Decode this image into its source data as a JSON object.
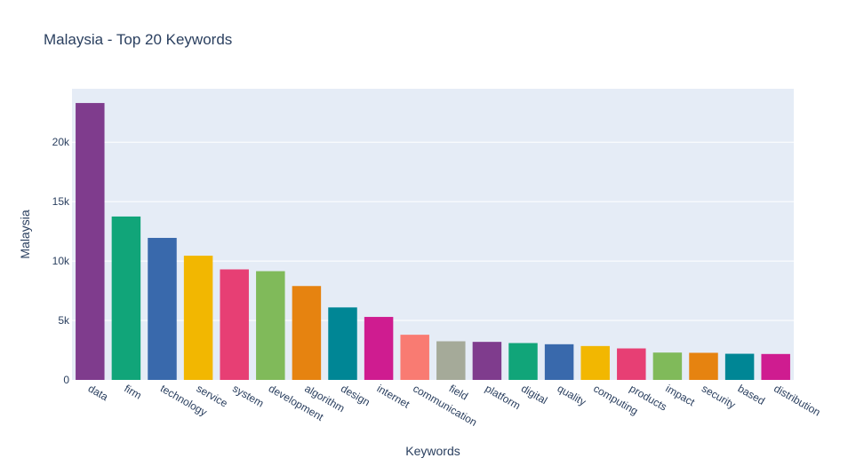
{
  "chart_data": {
    "type": "bar",
    "title": "Malaysia - Top 20 Keywords",
    "xlabel": "Keywords",
    "ylabel": "Malaysia",
    "categories": [
      "data",
      "firm",
      "technology",
      "service",
      "system",
      "development",
      "algorithm",
      "design",
      "internet",
      "communication",
      "field",
      "platform",
      "digital",
      "quality",
      "computing",
      "products",
      "impact",
      "security",
      "based",
      "distribution"
    ],
    "values": [
      23300,
      13750,
      11950,
      10450,
      9300,
      9150,
      7900,
      6100,
      5300,
      3800,
      3250,
      3200,
      3100,
      3000,
      2850,
      2650,
      2300,
      2280,
      2200,
      2180
    ],
    "ylim": [
      0,
      24500
    ],
    "yticks": [
      0,
      5000,
      10000,
      15000,
      20000
    ],
    "ytick_labels": [
      "0",
      "5k",
      "10k",
      "15k",
      "20k"
    ],
    "grid": true,
    "bar_colors": [
      "#7f3c8d",
      "#11a579",
      "#3969ac",
      "#f2b701",
      "#e73f74",
      "#80ba5a",
      "#e68310",
      "#008695",
      "#cf1c90",
      "#f97b72",
      "#a5aa99",
      "#7f3c8d",
      "#11a579",
      "#3969ac",
      "#f2b701",
      "#e73f74",
      "#80ba5a",
      "#e68310",
      "#008695",
      "#cf1c90"
    ],
    "plot_background": "#e5ecf6",
    "text_color": "#2a3f5f"
  }
}
